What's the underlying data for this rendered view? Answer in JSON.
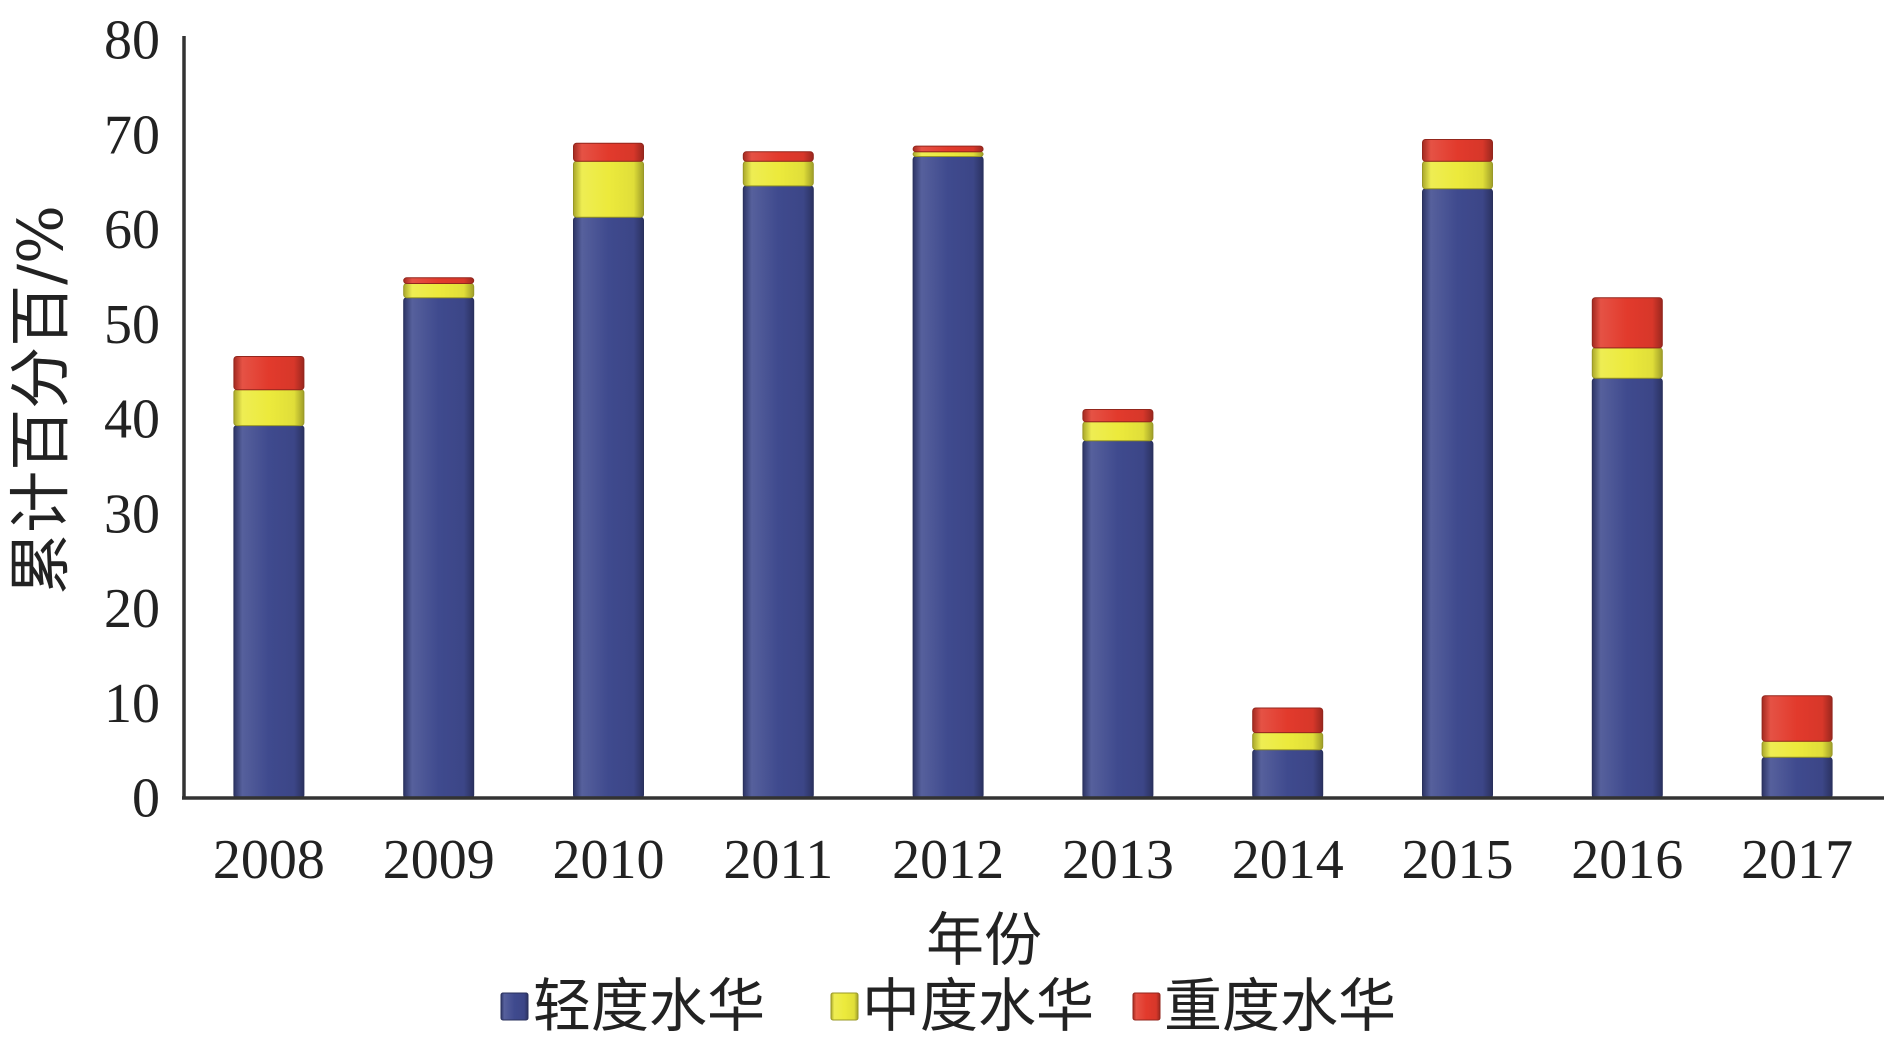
{
  "chart_data": {
    "type": "bar",
    "stacked": true,
    "categories": [
      "2008",
      "2009",
      "2010",
      "2011",
      "2012",
      "2013",
      "2014",
      "2015",
      "2016",
      "2017"
    ],
    "series": [
      {
        "name": "轻度水华",
        "color": "#3f4a8e",
        "values": [
          39.3,
          52.8,
          61.3,
          64.6,
          67.7,
          37.7,
          5.1,
          64.3,
          44.3,
          4.3
        ]
      },
      {
        "name": "中度水华",
        "color": "#ecea3c",
        "values": [
          3.8,
          1.5,
          5.9,
          2.6,
          0.5,
          2.0,
          1.8,
          2.9,
          3.2,
          1.7
        ]
      },
      {
        "name": "重度水华",
        "color": "#e23a2c",
        "values": [
          3.5,
          0.6,
          1.9,
          1.0,
          0.6,
          1.3,
          2.6,
          2.3,
          5.3,
          4.8
        ]
      }
    ],
    "xlabel": "年份",
    "ylabel": "累计百分百/%",
    "ylim": [
      0,
      80
    ],
    "yticks": [
      0,
      10,
      20,
      30,
      40,
      50,
      60,
      70,
      80
    ],
    "grid": false,
    "legend": "bottom"
  }
}
